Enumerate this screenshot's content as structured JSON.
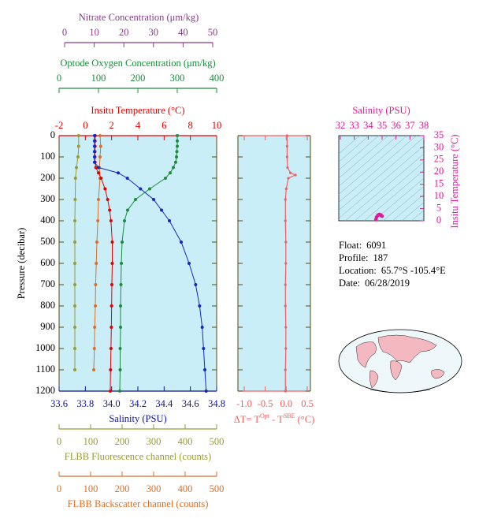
{
  "chart_data": [
    {
      "type": "line",
      "ylabel": "Pressure (decibar)",
      "ylim": [
        0,
        1200
      ],
      "yticks": [
        0,
        100,
        200,
        300,
        400,
        500,
        600,
        700,
        800,
        900,
        1000,
        1100,
        1200
      ],
      "x_axes": [
        {
          "label": "Nitrate Concentration (μm/kg)",
          "color": "#8a3c8a",
          "xlim": [
            0,
            50
          ],
          "xticks": [
            0,
            10,
            20,
            30,
            40,
            50
          ]
        },
        {
          "label": "Optode Oxygen Concentration (μm/kg)",
          "color": "#1a8c3a",
          "xlim": [
            0,
            400
          ],
          "xticks": [
            0,
            100,
            200,
            300,
            400
          ]
        },
        {
          "label": "Insitu Temperature (°C)",
          "color": "#e00000",
          "xlim": [
            -2,
            10
          ],
          "xticks": [
            -2,
            0,
            2,
            4,
            6,
            8,
            10
          ]
        },
        {
          "label": "Salinity (PSU)",
          "color": "#10149a",
          "xlim": [
            33.6,
            34.8
          ],
          "xticks": [
            33.6,
            33.8,
            {
              "value": 34.0,
              "label": "34.0"
            },
            34.2,
            34.4,
            34.6,
            34.8
          ]
        },
        {
          "label": "FLBB Fluorescence channel (counts)",
          "color": "#9a9a30",
          "xlim": [
            0,
            500
          ],
          "xticks": [
            0,
            100,
            200,
            300,
            400,
            500
          ]
        },
        {
          "label": "FLBB Backscatter channel (counts)",
          "color": "#d8702a",
          "xlim": [
            0,
            500
          ],
          "xticks": [
            0,
            100,
            200,
            300,
            400,
            500
          ]
        }
      ],
      "series": [
        {
          "axis": 4,
          "color": "#9a9a30",
          "pressure": [
            0,
            50,
            100,
            150,
            200,
            300,
            400,
            500,
            600,
            700,
            800,
            900,
            1000,
            1100
          ],
          "values": [
            62,
            62,
            60,
            55,
            52,
            51,
            50,
            50,
            50,
            50,
            50,
            50,
            50,
            50
          ]
        },
        {
          "axis": 5,
          "color": "#d8702a",
          "pressure": [
            0,
            50,
            100,
            150,
            200,
            300,
            400,
            500,
            600,
            700,
            800,
            900,
            1000,
            1100
          ],
          "values": [
            130,
            132,
            130,
            128,
            130,
            125,
            123,
            120,
            118,
            116,
            115,
            113,
            112,
            110
          ]
        },
        {
          "axis": 1,
          "color": "#1a8c3a",
          "pressure": [
            0,
            25,
            50,
            75,
            100,
            125,
            150,
            175,
            200,
            250,
            300,
            350,
            400,
            500,
            600,
            700,
            800,
            900,
            1000,
            1100,
            1200
          ],
          "values": [
            300,
            300,
            300,
            299,
            298,
            296,
            290,
            282,
            270,
            230,
            194,
            174,
            166,
            160,
            158,
            157,
            156,
            156,
            155,
            155,
            154
          ]
        },
        {
          "axis": 2,
          "color": "#e00000",
          "pressure": [
            0,
            25,
            50,
            75,
            100,
            125,
            150,
            175,
            200,
            250,
            300,
            350,
            400,
            500,
            600,
            700,
            800,
            900,
            1000,
            1100,
            1200
          ],
          "values": [
            0.75,
            0.74,
            0.74,
            0.73,
            0.73,
            0.74,
            0.8,
            1.0,
            1.2,
            1.5,
            1.7,
            1.85,
            1.95,
            2.05,
            2.05,
            2.02,
            2.0,
            1.98,
            1.95,
            1.92,
            1.9
          ]
        },
        {
          "axis": 3,
          "color": "#1428c0",
          "pressure": [
            0,
            25,
            50,
            75,
            100,
            125,
            150,
            175,
            200,
            250,
            300,
            350,
            400,
            500,
            600,
            700,
            800,
            900,
            1000,
            1100,
            1200
          ],
          "values": [
            33.87,
            33.87,
            33.87,
            33.87,
            33.87,
            33.87,
            33.9,
            34.05,
            34.12,
            34.22,
            34.32,
            34.38,
            34.44,
            34.53,
            34.59,
            34.64,
            34.67,
            34.69,
            34.7,
            34.71,
            34.72
          ]
        }
      ]
    },
    {
      "type": "line",
      "xlabel_parts": [
        "ΔT= T",
        "Opt",
        " - T",
        "SBE",
        " (°C)"
      ],
      "color": "#f06060",
      "xlim": [
        -1.0,
        0.5
      ],
      "xticks": [
        {
          "value": -1.0,
          "label": "-1.0"
        },
        -0.5,
        {
          "value": 0.0,
          "label": "0.0"
        },
        0.5
      ],
      "ylim": [
        0,
        1200
      ],
      "yticks": [
        0,
        100,
        200,
        300,
        400,
        500,
        600,
        700,
        800,
        900,
        1000,
        1100,
        1200
      ],
      "series": [
        {
          "color": "#f06060",
          "pressure": [
            0,
            50,
            100,
            150,
            175,
            185,
            200,
            250,
            300,
            400,
            500,
            600,
            700,
            800,
            900,
            1000,
            1100,
            1200
          ],
          "values": [
            0.02,
            0.02,
            0.02,
            0.03,
            0.1,
            0.22,
            0.05,
            0.0,
            -0.02,
            -0.02,
            -0.01,
            -0.01,
            -0.02,
            -0.02,
            -0.01,
            -0.01,
            -0.02,
            -0.02
          ]
        }
      ]
    },
    {
      "type": "scatter",
      "xlabel": "Salinity (PSU)",
      "ylabel": "Insitu Temperature (°C)",
      "color": "#e0199a",
      "xlim": [
        32,
        38
      ],
      "xticks": [
        32,
        33,
        34,
        35,
        36,
        37,
        38
      ],
      "ylim": [
        0,
        35
      ],
      "yticks": [
        0,
        5,
        10,
        15,
        20,
        25,
        30,
        35
      ],
      "x": [
        34.55,
        34.6,
        34.7,
        34.8,
        34.9,
        34.95,
        35.0
      ],
      "y": [
        0.5,
        1.5,
        2.3,
        2.6,
        2.4,
        2.1,
        1.9
      ]
    }
  ],
  "info": [
    {
      "label": "Float:",
      "value": "6091"
    },
    {
      "label": "Profile:",
      "value": "187"
    },
    {
      "label": "Location:",
      "value": "65.7°S  -105.4°E"
    },
    {
      "label": "Date:",
      "value": "06/28/2019"
    }
  ]
}
